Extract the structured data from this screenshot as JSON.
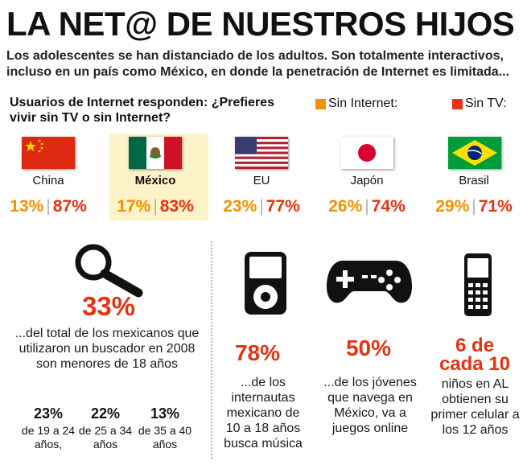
{
  "header": {
    "title": "LA NET@ DE NUESTROS HIJOS",
    "subtitle": "Los adolescentes se han distanciado de los adultos. Son totalmente interactivos, incluso en un país como México, en donde la penetración de Internet es limitada..."
  },
  "survey": {
    "question": "Usuarios de Internet responden: ¿Prefieres vivir sin TV o sin Internet?",
    "legend": {
      "sin_internet": "Sin Internet:",
      "sin_tv": "Sin TV:"
    }
  },
  "colors": {
    "sin_internet": "#f39200",
    "sin_tv": "#e63312",
    "highlight": "#fdf2c8"
  },
  "chart_data": {
    "type": "table",
    "title": "Usuarios de Internet responden: ¿Prefieres vivir sin TV o sin Internet?",
    "categories": [
      "China",
      "México",
      "EU",
      "Japón",
      "Brasil"
    ],
    "highlighted": "México",
    "series": [
      {
        "name": "Sin Internet",
        "values": [
          13,
          17,
          23,
          26,
          29
        ]
      },
      {
        "name": "Sin TV",
        "values": [
          87,
          83,
          77,
          74,
          71
        ]
      }
    ],
    "labels": {
      "sin_internet": [
        "13%",
        "17%",
        "23%",
        "26%",
        "29%"
      ],
      "sin_tv": [
        "87%",
        "83%",
        "77%",
        "74%",
        "71%"
      ]
    }
  },
  "stats": {
    "search": {
      "icon": "magnifier-icon",
      "value": "33%",
      "text": "...del total de los mexicanos que utilizaron un buscador en 2008 son menores de 18 años",
      "breakdown": [
        {
          "value": "23%",
          "label": "de 19 a 24 años,"
        },
        {
          "value": "22%",
          "label": "de 25 a 34 años"
        },
        {
          "value": "13%",
          "label": "de 35 a 40 años"
        }
      ]
    },
    "music": {
      "icon": "music-player-icon",
      "value": "78%",
      "text": "...de los internautas mexicano de 10 a 18 años busca música"
    },
    "games": {
      "icon": "gamepad-icon",
      "value": "50%",
      "text": "...de los jóvenes que navega en México, va a juegos online"
    },
    "phones": {
      "icon": "mobile-phone-icon",
      "value": "6 de cada 10",
      "text": "niños en AL obtienen su primer celular a los 12 años"
    }
  }
}
